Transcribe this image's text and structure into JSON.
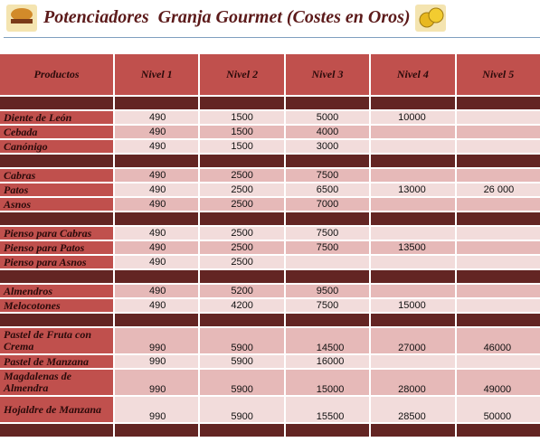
{
  "header": {
    "title": "Potenciadores  Granja Gourmet (Costes en Oros)"
  },
  "table": {
    "columns": [
      "Productos",
      "Nivel 1",
      "Nivel 2",
      "Nivel 3",
      "Nivel 4",
      "Nivel 5"
    ],
    "groups": [
      [
        {
          "product": "Diente de León",
          "values": [
            490,
            1500,
            5000,
            10000
          ]
        },
        {
          "product": "Cebada",
          "values": [
            490,
            1500,
            4000
          ]
        },
        {
          "product": "Canónigo",
          "values": [
            490,
            1500,
            3000
          ]
        }
      ],
      [
        {
          "product": "Cabras",
          "values": [
            490,
            2500,
            7500
          ]
        },
        {
          "product": "Patos",
          "values": [
            490,
            2500,
            6500,
            13000,
            "26 000"
          ]
        },
        {
          "product": "Asnos",
          "values": [
            490,
            2500,
            7000
          ]
        }
      ],
      [
        {
          "product": "Pienso para Cabras",
          "values": [
            490,
            2500,
            7500
          ]
        },
        {
          "product": "Pienso para Patos",
          "values": [
            490,
            2500,
            7500,
            13500
          ]
        },
        {
          "product": "Pienso para Asnos",
          "values": [
            490,
            2500
          ]
        }
      ],
      [
        {
          "product": "Almendros",
          "values": [
            490,
            5200,
            9500
          ]
        },
        {
          "product": "Melocotones",
          "values": [
            490,
            4200,
            7500,
            15000
          ]
        }
      ],
      [
        {
          "product": "Pastel de Fruta con Crema",
          "values": [
            990,
            5900,
            14500,
            27000,
            46000
          ]
        },
        {
          "product": "Pastel de Manzana",
          "values": [
            990,
            5900,
            16000
          ]
        },
        {
          "product": "Magdalenas de Almendra",
          "values": [
            990,
            5900,
            15000,
            28000,
            49000
          ]
        },
        {
          "product": "Hojaldre de Manzana",
          "values": [
            990,
            5900,
            15500,
            28500,
            50000
          ]
        }
      ]
    ]
  }
}
